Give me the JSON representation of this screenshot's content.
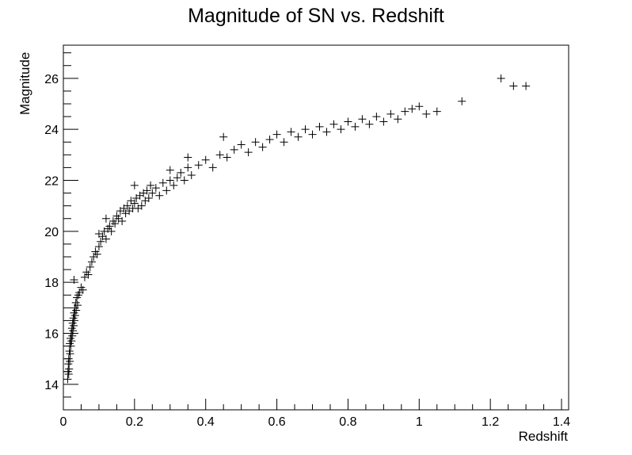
{
  "chart_data": {
    "type": "scatter",
    "title": "Magnitude of SN vs. Redshift",
    "xlabel": "Redshift",
    "ylabel": "Magnitude",
    "xlim": [
      0,
      1.42
    ],
    "ylim": [
      13,
      27.3
    ],
    "x_ticks": [
      0,
      0.2,
      0.4,
      0.6,
      0.8,
      1,
      1.2,
      1.4
    ],
    "x_tick_labels": [
      "0",
      "0.2",
      "0.4",
      "0.6",
      "0.8",
      "1",
      "1.2",
      "1.4"
    ],
    "y_ticks": [
      14,
      16,
      18,
      20,
      22,
      24,
      26
    ],
    "y_tick_labels": [
      "14",
      "16",
      "18",
      "20",
      "22",
      "24",
      "26"
    ],
    "grid": false,
    "legend": "none",
    "marker": "plus",
    "points": [
      [
        0.012,
        14.2
      ],
      [
        0.013,
        14.5
      ],
      [
        0.014,
        14.8
      ],
      [
        0.015,
        14.4
      ],
      [
        0.015,
        15.0
      ],
      [
        0.016,
        14.6
      ],
      [
        0.017,
        15.3
      ],
      [
        0.018,
        14.9
      ],
      [
        0.018,
        15.6
      ],
      [
        0.019,
        15.2
      ],
      [
        0.02,
        15.8
      ],
      [
        0.021,
        15.5
      ],
      [
        0.022,
        16.0
      ],
      [
        0.023,
        15.7
      ],
      [
        0.024,
        16.2
      ],
      [
        0.025,
        15.9
      ],
      [
        0.026,
        16.4
      ],
      [
        0.027,
        16.1
      ],
      [
        0.028,
        16.6
      ],
      [
        0.029,
        16.3
      ],
      [
        0.03,
        16.8
      ],
      [
        0.031,
        16.5
      ],
      [
        0.032,
        17.0
      ],
      [
        0.033,
        16.7
      ],
      [
        0.035,
        17.2
      ],
      [
        0.036,
        16.9
      ],
      [
        0.038,
        17.4
      ],
      [
        0.04,
        17.1
      ],
      [
        0.042,
        17.5
      ],
      [
        0.03,
        18.1
      ],
      [
        0.045,
        17.6
      ],
      [
        0.05,
        17.8
      ],
      [
        0.055,
        17.7
      ],
      [
        0.06,
        18.2
      ],
      [
        0.065,
        18.4
      ],
      [
        0.07,
        18.3
      ],
      [
        0.075,
        18.6
      ],
      [
        0.08,
        18.8
      ],
      [
        0.085,
        19.0
      ],
      [
        0.09,
        19.2
      ],
      [
        0.095,
        19.1
      ],
      [
        0.1,
        19.4
      ],
      [
        0.1,
        19.9
      ],
      [
        0.105,
        19.6
      ],
      [
        0.11,
        19.8
      ],
      [
        0.115,
        20.0
      ],
      [
        0.12,
        19.7
      ],
      [
        0.12,
        20.5
      ],
      [
        0.125,
        20.1
      ],
      [
        0.13,
        20.2
      ],
      [
        0.135,
        20.0
      ],
      [
        0.14,
        20.4
      ],
      [
        0.145,
        20.3
      ],
      [
        0.15,
        20.6
      ],
      [
        0.155,
        20.5
      ],
      [
        0.16,
        20.8
      ],
      [
        0.165,
        20.4
      ],
      [
        0.17,
        20.9
      ],
      [
        0.175,
        20.7
      ],
      [
        0.18,
        21.0
      ],
      [
        0.185,
        20.8
      ],
      [
        0.19,
        21.2
      ],
      [
        0.195,
        20.9
      ],
      [
        0.2,
        21.1
      ],
      [
        0.2,
        21.8
      ],
      [
        0.205,
        21.3
      ],
      [
        0.21,
        20.9
      ],
      [
        0.215,
        21.4
      ],
      [
        0.22,
        21.0
      ],
      [
        0.225,
        21.5
      ],
      [
        0.23,
        21.2
      ],
      [
        0.235,
        21.6
      ],
      [
        0.24,
        21.3
      ],
      [
        0.245,
        21.8
      ],
      [
        0.25,
        21.5
      ],
      [
        0.26,
        21.7
      ],
      [
        0.27,
        21.4
      ],
      [
        0.28,
        21.9
      ],
      [
        0.29,
        21.6
      ],
      [
        0.3,
        22.0
      ],
      [
        0.3,
        22.4
      ],
      [
        0.31,
        21.8
      ],
      [
        0.32,
        22.1
      ],
      [
        0.33,
        22.3
      ],
      [
        0.34,
        22.0
      ],
      [
        0.35,
        22.5
      ],
      [
        0.35,
        22.9
      ],
      [
        0.36,
        22.2
      ],
      [
        0.38,
        22.6
      ],
      [
        0.4,
        22.8
      ],
      [
        0.42,
        22.5
      ],
      [
        0.44,
        23.0
      ],
      [
        0.45,
        23.7
      ],
      [
        0.46,
        22.9
      ],
      [
        0.48,
        23.2
      ],
      [
        0.5,
        23.4
      ],
      [
        0.52,
        23.1
      ],
      [
        0.54,
        23.5
      ],
      [
        0.56,
        23.3
      ],
      [
        0.58,
        23.6
      ],
      [
        0.6,
        23.8
      ],
      [
        0.62,
        23.5
      ],
      [
        0.64,
        23.9
      ],
      [
        0.66,
        23.7
      ],
      [
        0.68,
        24.0
      ],
      [
        0.7,
        23.8
      ],
      [
        0.72,
        24.1
      ],
      [
        0.74,
        23.9
      ],
      [
        0.76,
        24.2
      ],
      [
        0.78,
        24.0
      ],
      [
        0.8,
        24.3
      ],
      [
        0.82,
        24.1
      ],
      [
        0.84,
        24.4
      ],
      [
        0.86,
        24.2
      ],
      [
        0.88,
        24.5
      ],
      [
        0.9,
        24.3
      ],
      [
        0.92,
        24.6
      ],
      [
        0.94,
        24.4
      ],
      [
        0.96,
        24.7
      ],
      [
        0.98,
        24.8
      ],
      [
        1.0,
        24.9
      ],
      [
        1.02,
        24.6
      ],
      [
        1.05,
        24.7
      ],
      [
        1.12,
        25.1
      ],
      [
        1.23,
        26.0
      ],
      [
        1.265,
        25.7
      ],
      [
        1.3,
        25.7
      ]
    ]
  }
}
